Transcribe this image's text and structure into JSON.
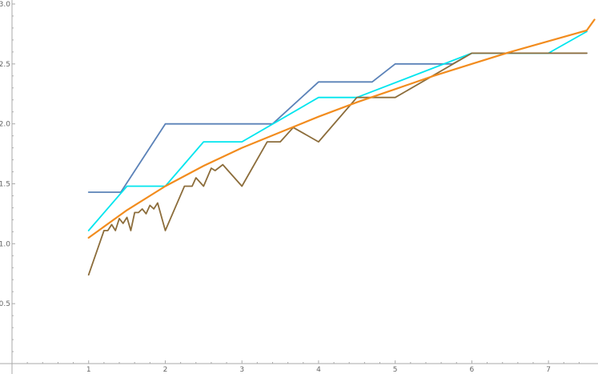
{
  "chart_data": {
    "type": "line",
    "title": "",
    "xlabel": "",
    "ylabel": "",
    "xlim": [
      0,
      7.5
    ],
    "ylim": [
      0,
      3.0
    ],
    "grid": false,
    "legend": "none",
    "x_major_ticks": [
      1,
      2,
      3,
      4,
      5,
      6,
      7
    ],
    "x_tick_labels": [
      "1",
      "2",
      "3",
      "4",
      "5",
      "6",
      "7"
    ],
    "y_major_ticks": [
      0.5,
      1.0,
      1.5,
      2.0,
      2.5,
      3.0
    ],
    "y_tick_labels": [
      "0.5",
      "1.0",
      "1.5",
      "2.0",
      "2.5",
      "3.0"
    ],
    "series": [
      {
        "color": "#5b82b8",
        "points": [
          [
            1.0,
            1.43
          ],
          [
            1.42,
            1.43
          ],
          [
            2.0,
            2.0
          ],
          [
            3.4,
            2.0
          ],
          [
            4.0,
            2.35
          ],
          [
            4.7,
            2.35
          ],
          [
            5.0,
            2.5
          ],
          [
            5.75,
            2.5
          ],
          [
            6.0,
            2.59
          ],
          [
            7.5,
            2.59
          ]
        ]
      },
      {
        "color": "#00e5ee",
        "points": [
          [
            1.0,
            1.11
          ],
          [
            1.5,
            1.48
          ],
          [
            2.0,
            1.48
          ],
          [
            2.5,
            1.85
          ],
          [
            3.0,
            1.85
          ],
          [
            4.0,
            2.22
          ],
          [
            4.5,
            2.22
          ],
          [
            6.0,
            2.59
          ],
          [
            7.0,
            2.59
          ],
          [
            7.5,
            2.77
          ]
        ]
      },
      {
        "color": "#8c6d3b",
        "points": [
          [
            1.0,
            0.74
          ],
          [
            1.2,
            1.11
          ],
          [
            1.25,
            1.11
          ],
          [
            1.3,
            1.16
          ],
          [
            1.35,
            1.11
          ],
          [
            1.4,
            1.21
          ],
          [
            1.45,
            1.17
          ],
          [
            1.5,
            1.22
          ],
          [
            1.55,
            1.11
          ],
          [
            1.6,
            1.26
          ],
          [
            1.65,
            1.26
          ],
          [
            1.7,
            1.29
          ],
          [
            1.75,
            1.25
          ],
          [
            1.8,
            1.32
          ],
          [
            1.85,
            1.29
          ],
          [
            1.9,
            1.34
          ],
          [
            2.0,
            1.11
          ],
          [
            2.25,
            1.48
          ],
          [
            2.35,
            1.48
          ],
          [
            2.4,
            1.55
          ],
          [
            2.5,
            1.48
          ],
          [
            2.6,
            1.63
          ],
          [
            2.65,
            1.61
          ],
          [
            2.75,
            1.66
          ],
          [
            3.0,
            1.48
          ],
          [
            3.33,
            1.85
          ],
          [
            3.5,
            1.85
          ],
          [
            3.67,
            1.97
          ],
          [
            4.0,
            1.85
          ],
          [
            4.5,
            2.22
          ],
          [
            5.0,
            2.22
          ],
          [
            6.0,
            2.59
          ],
          [
            7.5,
            2.59
          ]
        ]
      },
      {
        "color": "#f28c1e",
        "points": [
          [
            1.0,
            1.05
          ],
          [
            1.5,
            1.28
          ],
          [
            2.0,
            1.48
          ],
          [
            2.5,
            1.65
          ],
          [
            3.0,
            1.8
          ],
          [
            3.5,
            1.93
          ],
          [
            4.0,
            2.06
          ],
          [
            4.5,
            2.18
          ],
          [
            5.0,
            2.29
          ],
          [
            5.5,
            2.4
          ],
          [
            6.0,
            2.5
          ],
          [
            6.5,
            2.6
          ],
          [
            7.0,
            2.69
          ],
          [
            7.5,
            2.78
          ],
          [
            7.6,
            2.87
          ]
        ]
      }
    ]
  }
}
